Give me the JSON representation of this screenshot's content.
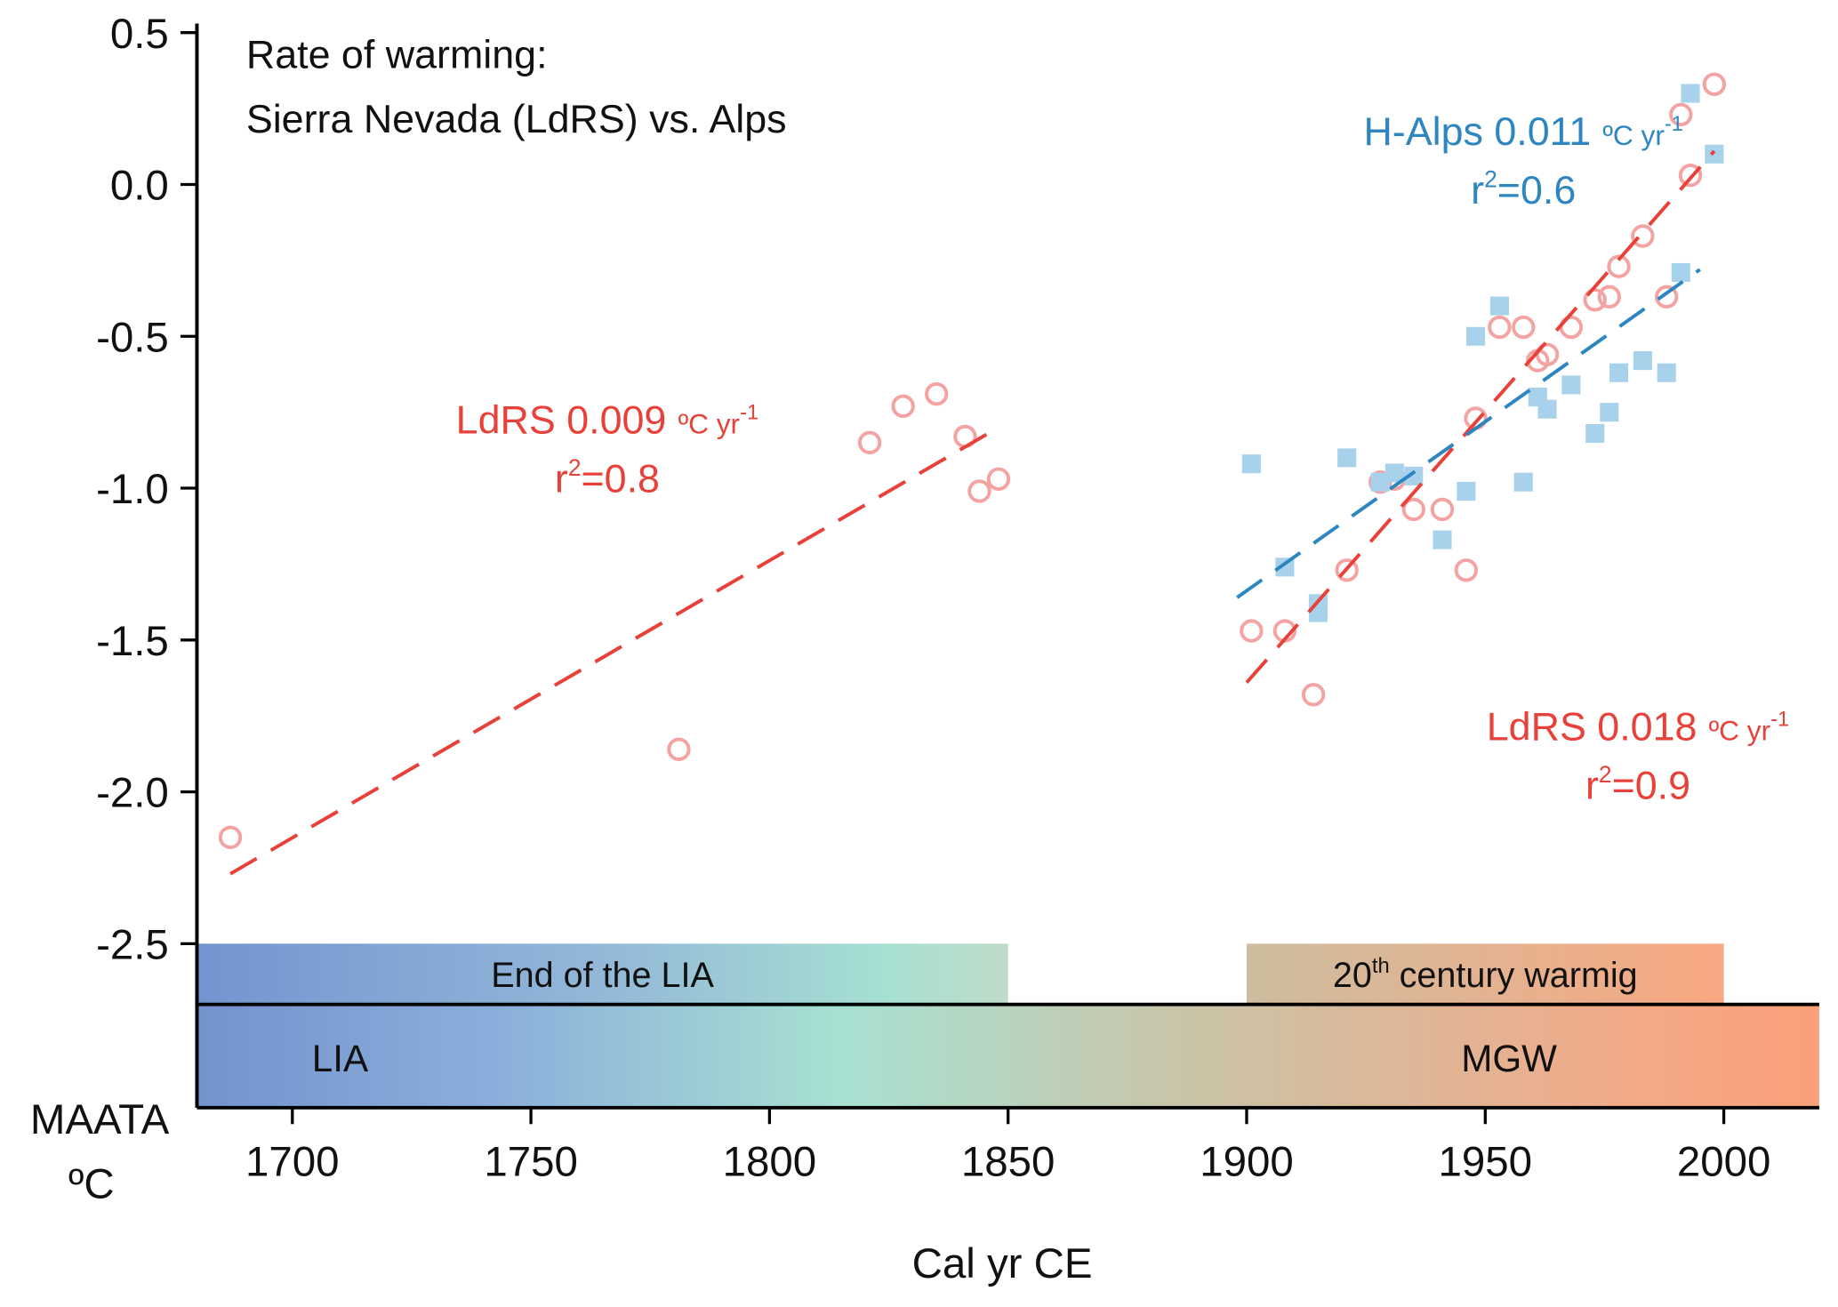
{
  "chart_data": {
    "type": "scatter",
    "title": [
      "Rate of warming:",
      "Sierra Nevada (LdRS) vs. Alps"
    ],
    "xlabel": "Cal yr CE",
    "ylabel": [
      "MAATA",
      "ºC"
    ],
    "xlim": [
      1680,
      2020
    ],
    "ylim": [
      -3.04,
      0.53
    ],
    "xticks": [
      1700,
      1750,
      1800,
      1850,
      1900,
      1950,
      2000
    ],
    "yticks": [
      0.5,
      {
        "value": 0,
        "label": "0.0"
      },
      -0.5,
      {
        "value": -1,
        "label": "-1.0"
      },
      -1.5,
      {
        "value": -2,
        "label": "-2.0"
      },
      -2.5
    ],
    "series": [
      {
        "name": "LdRS",
        "color": "#f4a3a3",
        "marker": "circle",
        "x": [
          1687,
          1781,
          1821,
          1828,
          1835,
          1841,
          1844,
          1848,
          1901,
          1908,
          1914,
          1921,
          1928,
          1931,
          1935,
          1941,
          1946,
          1948,
          1953,
          1958,
          1961,
          1963,
          1968,
          1973,
          1976,
          1978,
          1983,
          1988,
          1991,
          1993,
          1998
        ],
        "values": [
          -2.15,
          -1.86,
          -0.85,
          -0.73,
          -0.69,
          -0.83,
          -1.01,
          -0.97,
          -1.47,
          -1.47,
          -1.68,
          -1.27,
          -0.98,
          -0.97,
          -1.07,
          -1.07,
          -1.27,
          -0.77,
          -0.47,
          -0.47,
          -0.58,
          -0.56,
          -0.47,
          -0.38,
          -0.37,
          -0.27,
          -0.17,
          -0.37,
          0.23,
          0.03,
          0.33
        ]
      },
      {
        "name": "H-Alps",
        "color": "#a8d2ec",
        "marker": "square",
        "x": [
          1901,
          1908,
          1915,
          1915,
          1921,
          1928,
          1931,
          1935,
          1941,
          1946,
          1948,
          1953,
          1958,
          1961,
          1963,
          1968,
          1973,
          1976,
          1978,
          1983,
          1988,
          1991,
          1993,
          1998
        ],
        "values": [
          -0.92,
          -1.26,
          -1.38,
          -1.41,
          -0.9,
          -0.98,
          -0.95,
          -0.96,
          -1.17,
          -1.01,
          -0.5,
          -0.4,
          -0.98,
          -0.7,
          -0.74,
          -0.66,
          -0.82,
          -0.75,
          -0.62,
          -0.58,
          -0.62,
          -0.29,
          0.3,
          0.1
        ]
      }
    ],
    "trend_lines": [
      {
        "color": "#e8413a",
        "x": [
          1687,
          1848
        ],
        "values": [
          -2.27,
          -0.8
        ],
        "label": {
          "text": "LdRS 0.009",
          "unit": "ºC yr",
          "exp": "-1",
          "r": "r",
          "r_exp": "2",
          "r_value": "=0.8",
          "x": 1766,
          "y": -0.82
        }
      },
      {
        "color": "#e8413a",
        "x": [
          1900,
          1998
        ],
        "values": [
          -1.64,
          0.11
        ],
        "label": {
          "text": "LdRS 0.018",
          "unit": "ºC yr",
          "exp": "-1",
          "r": "r",
          "r_exp": "2",
          "r_value": "=0.9",
          "x": 1982,
          "y": -1.83
        }
      },
      {
        "color": "#2e86c1",
        "x": [
          1898,
          1995
        ],
        "values": [
          -1.36,
          -0.28
        ],
        "label": {
          "text": "H-Alps 0.011",
          "unit": "ºC yr",
          "exp": "-1",
          "r": "r",
          "r_exp": "2",
          "r_value": "=0.6",
          "x": 1958,
          "y": 0.13
        }
      }
    ],
    "periods": [
      {
        "label": "End of the LIA",
        "start": 1680,
        "end": 1850,
        "top": -2.5,
        "bottom": -2.7
      },
      {
        "label_parts": [
          "20",
          "th",
          " century warmig"
        ],
        "start": 1900,
        "end": 2000,
        "top": -2.5,
        "bottom": -2.7
      },
      {
        "labels": [
          "LIA",
          "MGW"
        ],
        "label_x": [
          1710,
          1955
        ],
        "start": 1680,
        "end": 2020,
        "top": -2.7,
        "bottom": -3.04
      }
    ]
  }
}
